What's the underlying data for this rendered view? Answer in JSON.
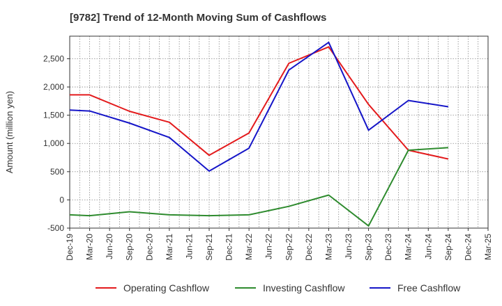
{
  "chart_data": {
    "type": "line",
    "title": "[9782]  Trend of 12-Month Moving Sum of Cashflows",
    "xlabel": "",
    "ylabel": "Amount (million yen)",
    "categories": [
      "Dec-19",
      "Mar-20",
      "Jun-20",
      "Sep-20",
      "Dec-20",
      "Mar-21",
      "Jun-21",
      "Sep-21",
      "Dec-21",
      "Mar-22",
      "Jun-22",
      "Sep-22",
      "Dec-22",
      "Mar-23",
      "Jun-23",
      "Sep-23",
      "Dec-23",
      "Mar-24",
      "Jun-24",
      "Sep-24",
      "Dec-24",
      "Mar-25"
    ],
    "ylim": [
      -500,
      2900
    ],
    "yticks": [
      -500,
      0,
      500,
      1000,
      1500,
      2000,
      2500
    ],
    "ytick_labels": [
      "-500",
      "0",
      "500",
      "1,000",
      "1,500",
      "2,000",
      "2,500"
    ],
    "grid": true,
    "legend_position": "bottom",
    "series": [
      {
        "name": "Operating Cashflow",
        "color": "#e31a1c",
        "values": [
          1860,
          1860,
          null,
          1570,
          null,
          1375,
          null,
          790,
          null,
          1185,
          null,
          2420,
          null,
          2710,
          null,
          1690,
          null,
          880,
          null,
          725,
          null,
          null
        ]
      },
      {
        "name": "Investing Cashflow",
        "color": "#2e8b2e",
        "values": [
          -265,
          -280,
          null,
          -210,
          null,
          -265,
          null,
          -280,
          null,
          -265,
          null,
          -115,
          null,
          85,
          null,
          -460,
          null,
          880,
          null,
          925,
          null,
          null
        ]
      },
      {
        "name": "Free Cashflow",
        "color": "#1515c8",
        "values": [
          1590,
          1575,
          null,
          1360,
          null,
          1105,
          null,
          510,
          null,
          915,
          null,
          2300,
          null,
          2790,
          null,
          1235,
          null,
          1760,
          null,
          1650,
          null,
          null
        ]
      }
    ]
  }
}
